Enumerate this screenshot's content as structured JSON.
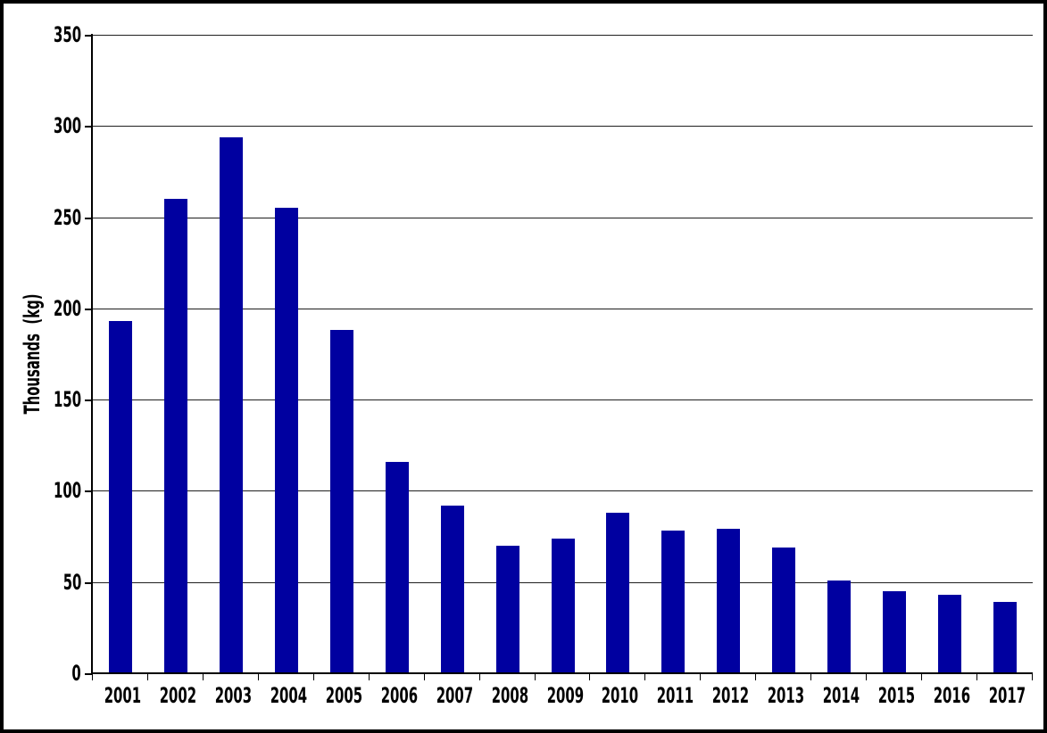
{
  "chart_data": {
    "type": "bar",
    "categories": [
      "2001",
      "2002",
      "2003",
      "2004",
      "2005",
      "2006",
      "2007",
      "2008",
      "2009",
      "2010",
      "2011",
      "2012",
      "2013",
      "2014",
      "2015",
      "2016",
      "2017"
    ],
    "values": [
      193,
      260,
      294,
      255,
      188,
      116,
      92,
      70,
      74,
      88,
      78,
      79,
      69,
      51,
      45,
      43,
      39
    ],
    "ylabel": "Thousands  (kg)",
    "ylim": [
      0,
      350
    ],
    "yticks": [
      0,
      50,
      100,
      150,
      200,
      250,
      300,
      350
    ],
    "grid": true,
    "legend_position": "none",
    "bar_color": "#0000A0",
    "axis_color": "#000000",
    "gridline_color": "#1f1f1f",
    "background_color": "#ffffff"
  }
}
